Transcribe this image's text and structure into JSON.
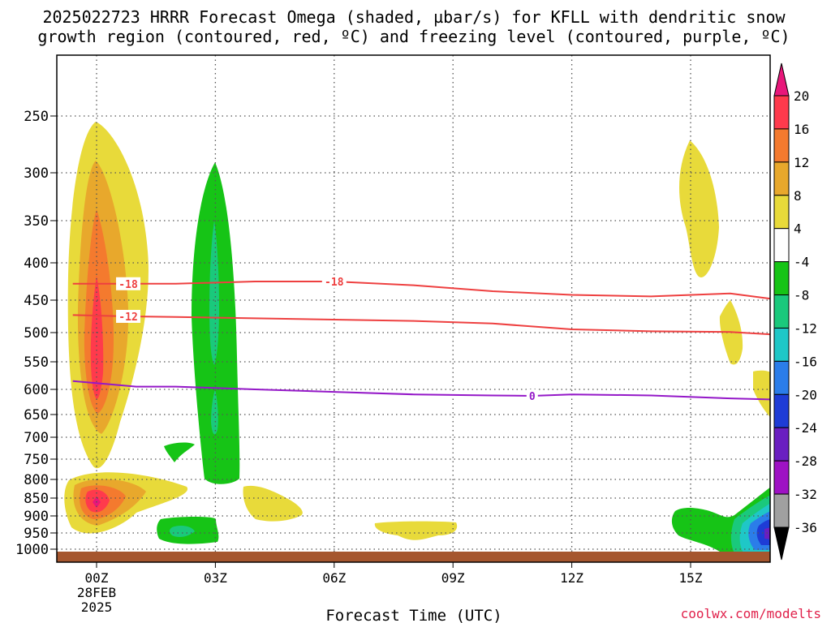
{
  "chart_data": {
    "type": "contour",
    "title_line1": "2025022723 HRRR Forecast Omega (shaded, µbar/s) for KFLL with dendritic snow",
    "title_line2": "growth region (contoured, red, ºC) and freezing level (contoured, purple, ºC)",
    "xlabel": "Forecast Time (UTC)",
    "credit": "coolwx.com/modelts",
    "x_ticks": [
      {
        "hour": 0,
        "label": "00Z",
        "sub1": "28FEB",
        "sub2": "2025"
      },
      {
        "hour": 3,
        "label": "03Z"
      },
      {
        "hour": 6,
        "label": "06Z"
      },
      {
        "hour": 9,
        "label": "09Z"
      },
      {
        "hour": 12,
        "label": "12Z"
      },
      {
        "hour": 15,
        "label": "15Z"
      }
    ],
    "xlim": [
      -0.6,
      17
    ],
    "y_ticks": [
      250,
      300,
      350,
      400,
      450,
      500,
      550,
      600,
      650,
      700,
      750,
      800,
      850,
      900,
      950,
      1000
    ],
    "ylim": [
      1000,
      200
    ],
    "colorbar": {
      "labels": [
        "20",
        "16",
        "12",
        "8",
        "4",
        "-4",
        "-8",
        "-12",
        "-16",
        "-20",
        "-24",
        "-28",
        "-32",
        "-36"
      ],
      "colors": [
        "#e8177a",
        "#ff3a4c",
        "#f47a2e",
        "#e8a82c",
        "#e8da3a",
        "#ffffff",
        "#16c416",
        "#1ac97c",
        "#1fc7c7",
        "#2b7de9",
        "#1e3cd6",
        "#6a1fc1",
        "#9e12c4",
        "#a0a0a0",
        "#000000"
      ]
    },
    "contours": [
      {
        "name": "dendritic-snow-upper",
        "label": "-18",
        "color": "#ee4040",
        "points": [
          [
            -0.6,
            428
          ],
          [
            0.8,
            428
          ],
          [
            2,
            428
          ],
          [
            4,
            425
          ],
          [
            6,
            425
          ],
          [
            8,
            430
          ],
          [
            10,
            438
          ],
          [
            12,
            443
          ],
          [
            14,
            445
          ],
          [
            16,
            441
          ],
          [
            17,
            448
          ]
        ],
        "label_at": [
          0.8,
          6
        ]
      },
      {
        "name": "dendritic-snow-lower",
        "label": "-12",
        "color": "#ee4040",
        "points": [
          [
            -0.6,
            473
          ],
          [
            0.8,
            475
          ],
          [
            2,
            476
          ],
          [
            4,
            478
          ],
          [
            6,
            480
          ],
          [
            8,
            482
          ],
          [
            10,
            486
          ],
          [
            12,
            495
          ],
          [
            14,
            498
          ],
          [
            16,
            499
          ],
          [
            17,
            503
          ]
        ],
        "label_at": [
          0.8
        ]
      },
      {
        "name": "freezing-level",
        "label": "0",
        "color": "#9418c8",
        "points": [
          [
            -0.6,
            585
          ],
          [
            1,
            595
          ],
          [
            2,
            595
          ],
          [
            4,
            600
          ],
          [
            6,
            605
          ],
          [
            8,
            610
          ],
          [
            10,
            612
          ],
          [
            11,
            613
          ],
          [
            12,
            610
          ],
          [
            14,
            612
          ],
          [
            16,
            618
          ],
          [
            17,
            620
          ]
        ],
        "label_at": [
          11
        ]
      }
    ]
  }
}
